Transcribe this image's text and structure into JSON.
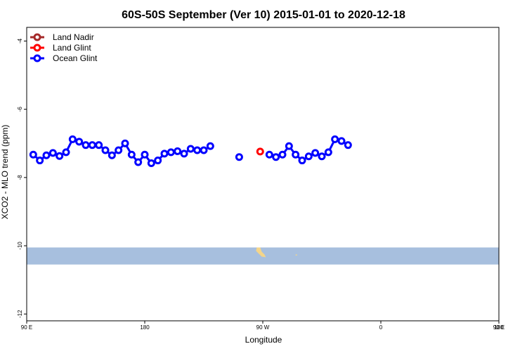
{
  "chart_data": {
    "type": "line",
    "title": "60S-50S September (Ver 10)   2015-01-01 to 2020-12-18",
    "xlabel": "Longitude",
    "ylabel": "XCO2 - MLO trend (ppm)",
    "xlim": [
      90,
      450
    ],
    "ylim": [
      -12.2,
      -3.6
    ],
    "x_ticks": [
      {
        "value": 90,
        "label": "90 E"
      },
      {
        "value": 180,
        "label": "180"
      },
      {
        "value": 270,
        "label": "90 W"
      },
      {
        "value": 360,
        "label": "0"
      },
      {
        "value": 450,
        "label": "90 E"
      },
      {
        "value": 540,
        "label": "180"
      }
    ],
    "y_ticks": [
      {
        "value": -4,
        "label": "-4"
      },
      {
        "value": -6,
        "label": "-6"
      },
      {
        "value": -8,
        "label": "-8"
      },
      {
        "value": -10,
        "label": "-10"
      },
      {
        "value": -12,
        "label": "-12"
      }
    ],
    "legend_position": "top-left",
    "series": [
      {
        "name": "Land Nadir",
        "color": "#a52a2a",
        "points": []
      },
      {
        "name": "Land Glint",
        "color": "#ff0000",
        "points": [
          [
            268,
            -7.24
          ]
        ]
      },
      {
        "name": "Ocean Glint",
        "color": "#0000ff",
        "points": [
          [
            95,
            -7.33
          ],
          [
            100,
            -7.5
          ],
          [
            105,
            -7.35
          ],
          [
            110,
            -7.28
          ],
          [
            115,
            -7.37
          ],
          [
            120,
            -7.26
          ],
          [
            125,
            -6.88
          ],
          [
            130,
            -6.95
          ],
          [
            135,
            -7.05
          ],
          [
            140,
            -7.05
          ],
          [
            145,
            -7.05
          ],
          [
            150,
            -7.2
          ],
          [
            155,
            -7.35
          ],
          [
            160,
            -7.2
          ],
          [
            165,
            -7.0
          ],
          [
            170,
            -7.33
          ],
          [
            175,
            -7.55
          ],
          [
            180,
            -7.33
          ],
          [
            185,
            -7.58
          ],
          [
            190,
            -7.5
          ],
          [
            195,
            -7.3
          ],
          [
            200,
            -7.26
          ],
          [
            205,
            -7.23
          ],
          [
            210,
            -7.3
          ],
          [
            215,
            -7.16
          ],
          [
            220,
            -7.2
          ],
          [
            225,
            -7.2
          ],
          [
            230,
            -7.08
          ],
          [
            252,
            -7.4
          ],
          [
            275,
            -7.33
          ],
          [
            280,
            -7.4
          ],
          [
            285,
            -7.33
          ],
          [
            290,
            -7.08
          ],
          [
            295,
            -7.33
          ],
          [
            300,
            -7.5
          ],
          [
            305,
            -7.38
          ],
          [
            310,
            -7.28
          ],
          [
            315,
            -7.38
          ],
          [
            320,
            -7.26
          ],
          [
            325,
            -6.88
          ],
          [
            330,
            -6.93
          ],
          [
            335,
            -7.05
          ]
        ]
      }
    ]
  },
  "map_band": {
    "y_range": [
      -10.55,
      -10.05
    ],
    "color": "#a7bfde",
    "land_color": "#f4d58a"
  }
}
